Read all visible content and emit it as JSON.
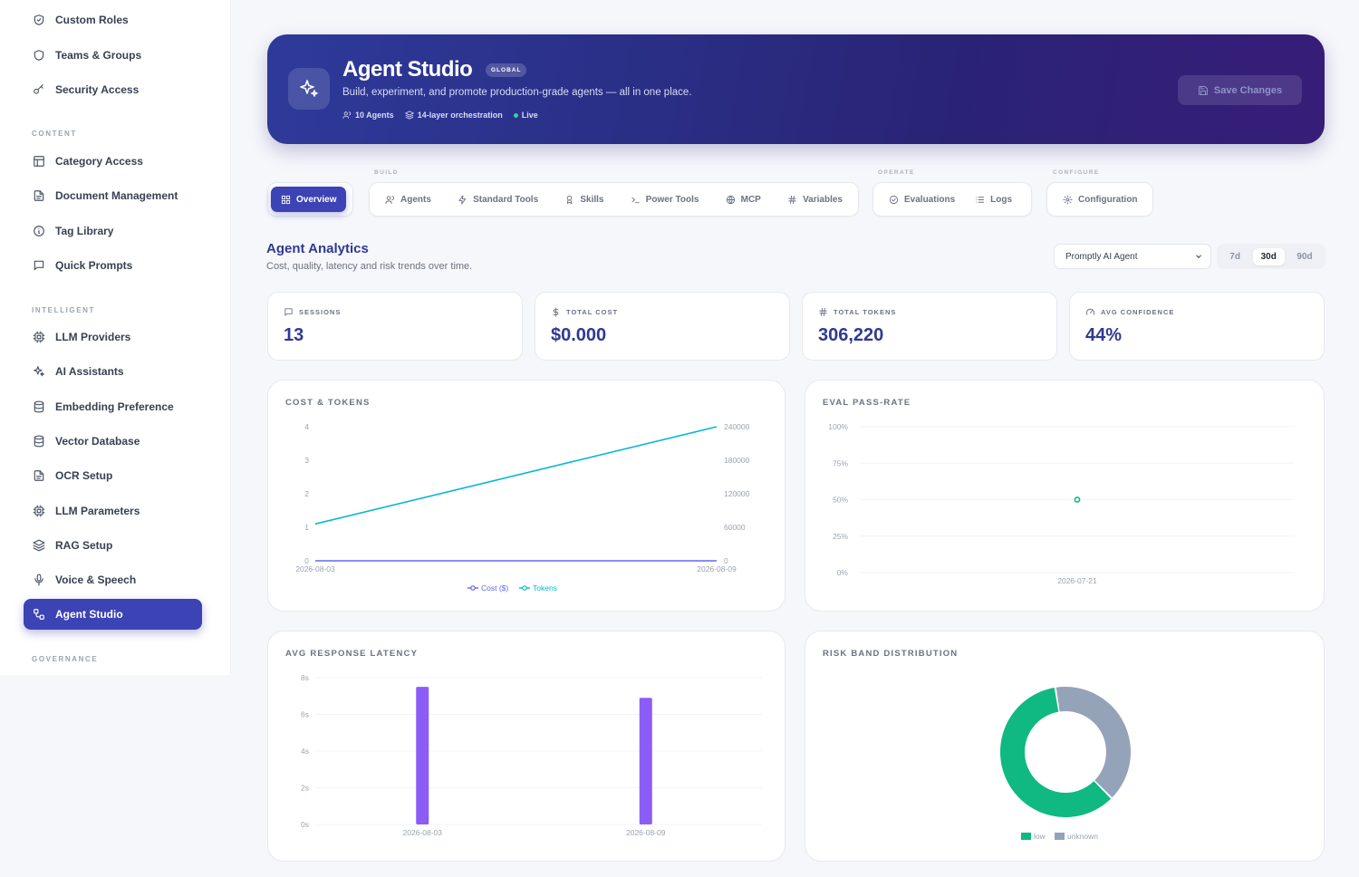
{
  "sidebar": {
    "top_items": [
      {
        "label": "Custom Roles",
        "icon": "shield-check-icon"
      },
      {
        "label": "Teams & Groups",
        "icon": "shield-icon"
      },
      {
        "label": "Security Access",
        "icon": "key-icon"
      }
    ],
    "sections": {
      "content": "CONTENT",
      "intelligent": "INTELLIGENT",
      "governance": "GOVERNANCE"
    },
    "content_items": [
      {
        "label": "Category Access",
        "icon": "layout-icon"
      },
      {
        "label": "Document Management",
        "icon": "document-icon"
      },
      {
        "label": "Tag Library",
        "icon": "info-icon"
      },
      {
        "label": "Quick Prompts",
        "icon": "message-icon"
      }
    ],
    "intelligent_items": [
      {
        "label": "LLM Providers",
        "icon": "cpu-icon"
      },
      {
        "label": "AI Assistants",
        "icon": "sparkles-icon"
      },
      {
        "label": "Embedding Preference",
        "icon": "database-icon"
      },
      {
        "label": "Vector Database",
        "icon": "database-icon"
      },
      {
        "label": "OCR Setup",
        "icon": "document-icon"
      },
      {
        "label": "LLM Parameters",
        "icon": "cpu-icon"
      },
      {
        "label": "RAG Setup",
        "icon": "layers-icon"
      },
      {
        "label": "Voice & Speech",
        "icon": "microphone-icon"
      },
      {
        "label": "Agent Studio",
        "icon": "workflow-icon",
        "active": true
      }
    ]
  },
  "hero": {
    "title": "Agent Studio",
    "badge": "GLOBAL",
    "subtitle": "Build, experiment, and promote production-grade agents — all in one place.",
    "meta_agents": "10 Agents",
    "meta_layers": "14-layer orchestration",
    "meta_status": "Live",
    "save_label": "Save Changes"
  },
  "tabs": {
    "groups": {
      "build": "BUILD",
      "operate": "OPERATE",
      "configure": "CONFIGURE"
    },
    "overview": "Overview",
    "build": [
      "Agents",
      "Standard Tools",
      "Skills",
      "Power Tools",
      "MCP",
      "Variables"
    ],
    "operate": [
      "Evaluations",
      "Logs"
    ],
    "configure": [
      "Configuration"
    ]
  },
  "analytics": {
    "title": "Agent Analytics",
    "subtitle": "Cost, quality, latency and risk trends over time.",
    "agent_selected": "Promptly AI Agent",
    "ranges": [
      "7d",
      "30d",
      "90d"
    ],
    "active_range": "30d"
  },
  "kpis": [
    {
      "label": "SESSIONS",
      "value": "13",
      "icon": "message-icon"
    },
    {
      "label": "TOTAL COST",
      "value": "$0.000",
      "icon": "dollar-icon"
    },
    {
      "label": "TOTAL TOKENS",
      "value": "306,220",
      "icon": "hash-icon"
    },
    {
      "label": "AVG CONFIDENCE",
      "value": "44%",
      "icon": "gauge-icon"
    }
  ],
  "chart_titles": {
    "cost_tokens": "COST & TOKENS",
    "eval_pass_rate": "EVAL PASS-RATE",
    "latency": "AVG RESPONSE LATENCY",
    "risk": "RISK BAND DISTRIBUTION"
  },
  "colors": {
    "primary": "#3b43b5",
    "cost": "#6366f1",
    "tokens": "#06b6d4",
    "eval": "#10b981",
    "latency": "#8b5cf6",
    "low": "#10b981",
    "unknown": "#94a3b8"
  },
  "chart_data": [
    {
      "type": "line",
      "title": "COST & TOKENS",
      "x": [
        "2026-08-03",
        "2026-08-09"
      ],
      "series": [
        {
          "name": "Cost ($)",
          "axis": "left",
          "values": [
            0,
            0
          ]
        },
        {
          "name": "Tokens",
          "axis": "right",
          "values": [
            66000,
            240000
          ]
        }
      ],
      "y_left_ticks": [
        "0",
        "1",
        "2",
        "3",
        "4"
      ],
      "y_right_ticks": [
        "0",
        "60000",
        "120000",
        "180000",
        "240000"
      ],
      "ylim_left": [
        0,
        4
      ],
      "ylim_right": [
        0,
        240000
      ],
      "legend": "bottom"
    },
    {
      "type": "scatter",
      "title": "EVAL PASS-RATE",
      "x": [
        "2026-07-21"
      ],
      "values": [
        50
      ],
      "y_ticks": [
        "0%",
        "25%",
        "50%",
        "75%",
        "100%"
      ],
      "ylim": [
        0,
        100
      ]
    },
    {
      "type": "bar",
      "title": "AVG RESPONSE LATENCY",
      "categories": [
        "2026-08-03",
        "2026-08-09"
      ],
      "values": [
        7.5,
        6.9
      ],
      "y_ticks": [
        "0s",
        "2s",
        "4s",
        "6s",
        "8s"
      ],
      "ylim": [
        0,
        8
      ]
    },
    {
      "type": "pie",
      "title": "RISK BAND DISTRIBUTION",
      "labels": [
        "low",
        "unknown"
      ],
      "values": [
        60,
        40
      ],
      "legend": "bottom"
    }
  ]
}
